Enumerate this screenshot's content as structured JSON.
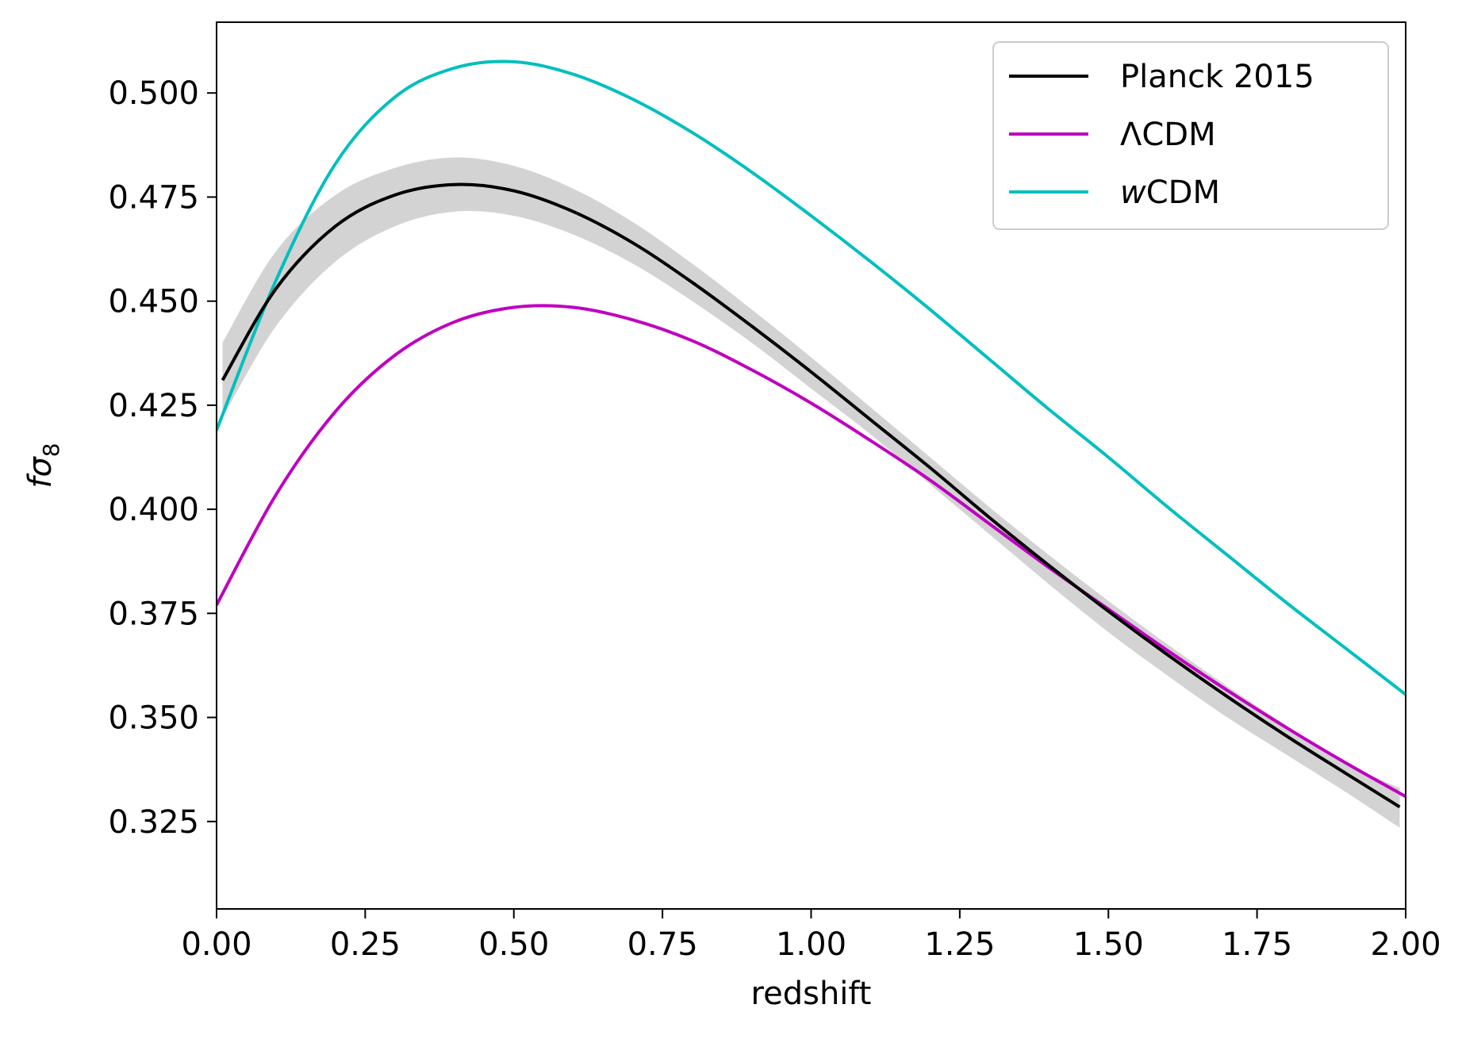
{
  "chart_data": {
    "type": "line",
    "title": "",
    "xlabel": "redshift",
    "ylabel": "fσ8",
    "ylabel_parts": {
      "main": "fσ",
      "sub": "8"
    },
    "xlim": [
      0.0,
      2.0
    ],
    "ylim": [
      0.304,
      0.517
    ],
    "xticks": [
      0.0,
      0.25,
      0.5,
      0.75,
      1.0,
      1.25,
      1.5,
      1.75,
      2.0
    ],
    "xtick_labels": [
      "0.00",
      "0.25",
      "0.50",
      "0.75",
      "1.00",
      "1.25",
      "1.50",
      "1.75",
      "2.00"
    ],
    "yticks": [
      0.325,
      0.35,
      0.375,
      0.4,
      0.425,
      0.45,
      0.475,
      0.5
    ],
    "ytick_labels": [
      "0.325",
      "0.350",
      "0.375",
      "0.400",
      "0.425",
      "0.450",
      "0.475",
      "0.500"
    ],
    "legend_position": "top-right",
    "x": [
      0.0,
      0.1,
      0.2,
      0.3,
      0.4,
      0.5,
      0.6,
      0.7,
      0.8,
      0.9,
      1.0,
      1.1,
      1.2,
      1.3,
      1.4,
      1.5,
      1.6,
      1.7,
      1.8,
      1.9,
      2.0
    ],
    "series": [
      {
        "name": "Planck 2015",
        "color": "#000000",
        "legend_label": {
          "italic": "",
          "text": "Planck 2015"
        },
        "x": [
          0.01,
          0.1,
          0.2,
          0.3,
          0.4,
          0.5,
          0.6,
          0.7,
          0.8,
          0.9,
          1.0,
          1.1,
          1.2,
          1.3,
          1.4,
          1.5,
          1.6,
          1.7,
          1.8,
          1.9,
          1.99
        ],
        "values": [
          0.431,
          0.453,
          0.468,
          0.4755,
          0.478,
          0.4765,
          0.4715,
          0.464,
          0.4545,
          0.444,
          0.433,
          0.4215,
          0.41,
          0.398,
          0.3865,
          0.3755,
          0.365,
          0.355,
          0.3455,
          0.3365,
          0.3285
        ],
        "band_upper": [
          0.44,
          0.462,
          0.4755,
          0.482,
          0.4845,
          0.4825,
          0.477,
          0.469,
          0.459,
          0.448,
          0.4365,
          0.4245,
          0.4125,
          0.4005,
          0.389,
          0.378,
          0.3675,
          0.3575,
          0.348,
          0.339,
          0.333
        ],
        "band_lower": [
          0.422,
          0.444,
          0.4595,
          0.468,
          0.4715,
          0.4705,
          0.466,
          0.459,
          0.45,
          0.44,
          0.429,
          0.418,
          0.406,
          0.394,
          0.382,
          0.3705,
          0.36,
          0.35,
          0.341,
          0.332,
          0.3235
        ]
      },
      {
        "name": "ΛCDM",
        "color": "#bf00bf",
        "legend_label": {
          "italic": "",
          "text": "ΛCDM"
        },
        "x": [
          0.0,
          0.1,
          0.2,
          0.3,
          0.4,
          0.5,
          0.6,
          0.7,
          0.8,
          0.9,
          1.0,
          1.1,
          1.2,
          1.3,
          1.4,
          1.5,
          1.6,
          1.7,
          1.8,
          1.9,
          2.0
        ],
        "values": [
          0.377,
          0.4035,
          0.4235,
          0.437,
          0.445,
          0.4485,
          0.4485,
          0.4455,
          0.4405,
          0.4335,
          0.4255,
          0.4165,
          0.407,
          0.3965,
          0.386,
          0.376,
          0.366,
          0.3565,
          0.3475,
          0.339,
          0.331
        ]
      },
      {
        "name": "wCDM",
        "color": "#00bfbf",
        "legend_label": {
          "italic": "w",
          "text": "CDM"
        },
        "x": [
          0.0,
          0.1,
          0.2,
          0.3,
          0.4,
          0.5,
          0.6,
          0.7,
          0.8,
          0.9,
          1.0,
          1.1,
          1.2,
          1.3,
          1.4,
          1.5,
          1.6,
          1.7,
          1.8,
          1.9,
          2.0
        ],
        "values": [
          0.419,
          0.455,
          0.483,
          0.499,
          0.506,
          0.5075,
          0.5045,
          0.4985,
          0.4905,
          0.481,
          0.4705,
          0.4595,
          0.448,
          0.436,
          0.424,
          0.4125,
          0.4005,
          0.389,
          0.3775,
          0.3665,
          0.3555
        ]
      }
    ]
  }
}
